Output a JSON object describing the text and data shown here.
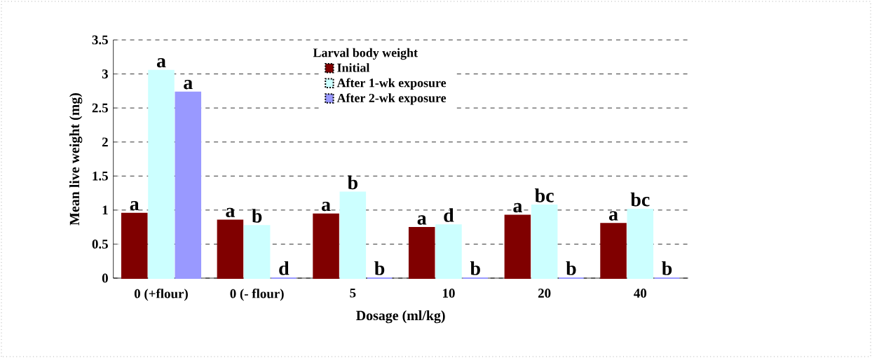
{
  "chart_data": {
    "type": "bar",
    "xlabel": "Dosage (ml/kg)",
    "ylabel": "Mean live weight (mg)",
    "legend_title": "Larval body weight",
    "categories": [
      "0 (+flour)",
      "0 (- flour)",
      "5",
      "10",
      "20",
      "40"
    ],
    "series": [
      {
        "name": "Initial",
        "color": "#800000",
        "values": [
          0.95,
          0.85,
          0.94,
          0.74,
          0.92,
          0.8
        ],
        "value_labels": [
          "a",
          "a",
          "a",
          "a",
          "a",
          "a"
        ]
      },
      {
        "name": "After 1-wk exposure",
        "color": "#ccffff",
        "values": [
          3.05,
          0.77,
          1.26,
          0.78,
          1.07,
          1.01
        ],
        "value_labels": [
          "a",
          "b",
          "b",
          "d",
          "bc",
          "bc"
        ]
      },
      {
        "name": "After 2-wk exposure",
        "color": "#9999ff",
        "values": [
          2.73,
          0,
          0,
          0,
          0,
          0
        ],
        "value_labels": [
          "a",
          "d",
          "b",
          "b",
          "b",
          "b"
        ]
      }
    ],
    "ylim": [
      0,
      3.5
    ],
    "yticks": [
      0,
      0.5,
      1,
      1.5,
      2,
      2.5,
      3,
      3.5
    ],
    "grid": "y",
    "legend": "top"
  }
}
